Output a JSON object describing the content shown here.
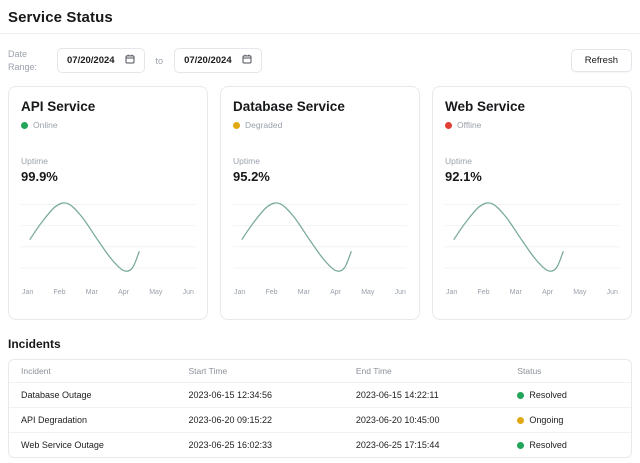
{
  "header": {
    "title": "Service Status"
  },
  "controls": {
    "date_range_label": "Date Range:",
    "start_date": "07/20/2024",
    "to_label": "to",
    "end_date": "07/20/2024",
    "start_date_icon": "calendar-icon",
    "end_date_icon": "calendar-icon",
    "refresh_label": "Refresh"
  },
  "colors": {
    "online": "#22a45a",
    "degraded": "#e0a812",
    "offline": "#e23e33",
    "resolved": "#22a45a",
    "ongoing": "#e0a812",
    "line": "#7bab9b",
    "grid": "#f1f3f4"
  },
  "services": [
    {
      "name": "API Service",
      "status": "Online",
      "status_color": "#22a45a",
      "uptime_label": "Uptime",
      "uptime": "99.9%"
    },
    {
      "name": "Database Service",
      "status": "Degraded",
      "status_color": "#e0a812",
      "uptime_label": "Uptime",
      "uptime": "95.2%"
    },
    {
      "name": "Web Service",
      "status": "Offline",
      "status_color": "#e23e33",
      "uptime_label": "Uptime",
      "uptime": "92.1%"
    }
  ],
  "chart_data": [
    {
      "type": "line",
      "service": "API Service",
      "title": "",
      "x_labels": [
        "Jan",
        "Feb",
        "Mar",
        "Apr",
        "May",
        "Jun"
      ],
      "y_tick_labels": [],
      "legend": "none",
      "grid": "horizontal",
      "description": "Unlabeled sine-shaped uptime trend; curve spans Jan to just past Apr, peak near Feb, trough near Apr",
      "points_pct": [
        [
          5,
          52
        ],
        [
          12,
          32
        ],
        [
          20,
          14
        ],
        [
          27,
          11
        ],
        [
          35,
          26
        ],
        [
          44,
          52
        ],
        [
          52,
          74
        ],
        [
          59,
          87
        ],
        [
          64,
          84
        ],
        [
          68,
          65
        ]
      ]
    },
    {
      "type": "line",
      "service": "Database Service",
      "title": "",
      "x_labels": [
        "Jan",
        "Feb",
        "Mar",
        "Apr",
        "May",
        "Jun"
      ],
      "y_tick_labels": [],
      "legend": "none",
      "grid": "horizontal",
      "description": "Identical sine-shaped trend curve as other services",
      "points_pct": [
        [
          5,
          52
        ],
        [
          12,
          32
        ],
        [
          20,
          14
        ],
        [
          27,
          11
        ],
        [
          35,
          26
        ],
        [
          44,
          52
        ],
        [
          52,
          74
        ],
        [
          59,
          87
        ],
        [
          64,
          84
        ],
        [
          68,
          65
        ]
      ]
    },
    {
      "type": "line",
      "service": "Web Service",
      "title": "",
      "x_labels": [
        "Jan",
        "Feb",
        "Mar",
        "Apr",
        "May",
        "Jun"
      ],
      "y_tick_labels": [],
      "legend": "none",
      "grid": "horizontal",
      "description": "Identical sine-shaped trend curve as other services",
      "points_pct": [
        [
          5,
          52
        ],
        [
          12,
          32
        ],
        [
          20,
          14
        ],
        [
          27,
          11
        ],
        [
          35,
          26
        ],
        [
          44,
          52
        ],
        [
          52,
          74
        ],
        [
          59,
          87
        ],
        [
          64,
          84
        ],
        [
          68,
          65
        ]
      ]
    }
  ],
  "incidents": {
    "title": "Incidents",
    "columns": [
      "Incident",
      "Start Time",
      "End Time",
      "Status"
    ],
    "rows": [
      {
        "incident": "Database Outage",
        "start": "2023-06-15 12:34:56",
        "end": "2023-06-15 14:22:11",
        "status": "Resolved",
        "status_color": "#22a45a"
      },
      {
        "incident": "API Degradation",
        "start": "2023-06-20 09:15:22",
        "end": "2023-06-20 10:45:00",
        "status": "Ongoing",
        "status_color": "#e0a812"
      },
      {
        "incident": "Web Service Outage",
        "start": "2023-06-25 16:02:33",
        "end": "2023-06-25 17:15:44",
        "status": "Resolved",
        "status_color": "#22a45a"
      }
    ]
  }
}
